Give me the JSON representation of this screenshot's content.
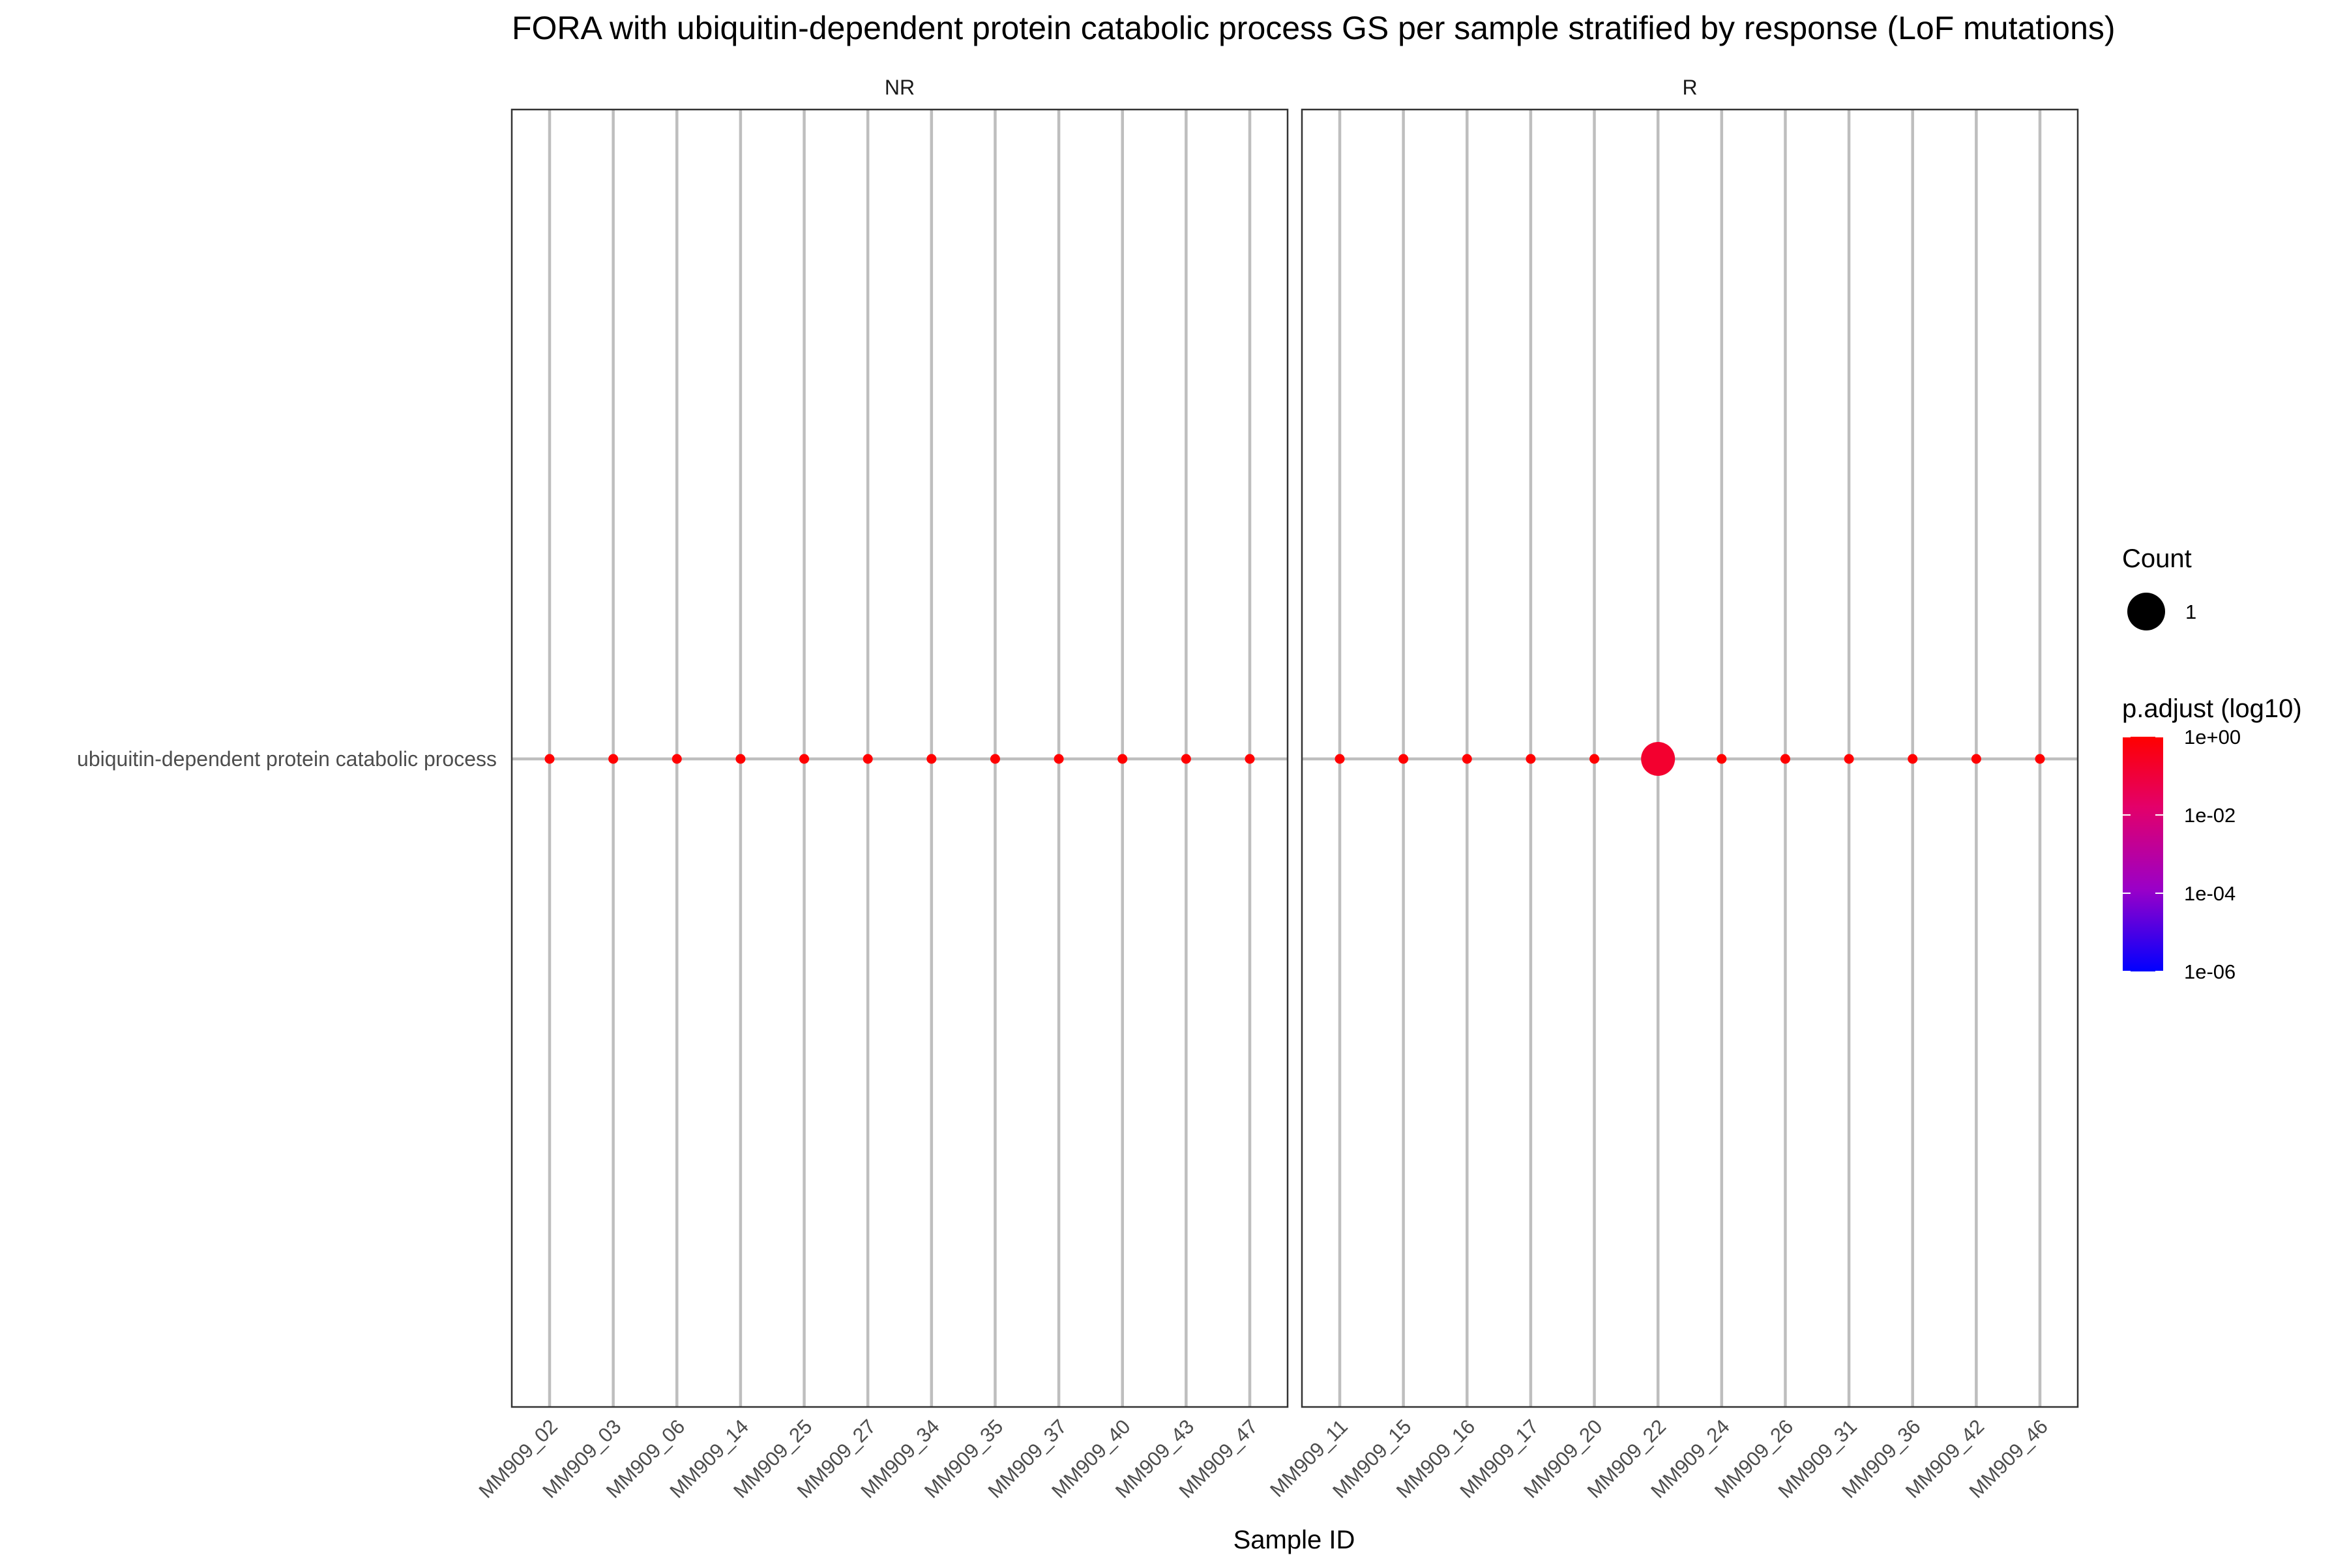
{
  "chart_data": {
    "type": "scatter",
    "title": "FORA with ubiquitin-dependent protein catabolic process GS per sample stratified by response (LoF mutations)",
    "xlabel": "Sample ID",
    "ylabel": "",
    "y_categories": [
      "ubiquitin-dependent protein catabolic process"
    ],
    "facets": [
      {
        "label": "NR",
        "samples": [
          "MM909_02",
          "MM909_03",
          "MM909_06",
          "MM909_14",
          "MM909_25",
          "MM909_27",
          "MM909_34",
          "MM909_35",
          "MM909_37",
          "MM909_40",
          "MM909_43",
          "MM909_47"
        ]
      },
      {
        "label": "R",
        "samples": [
          "MM909_11",
          "MM909_15",
          "MM909_16",
          "MM909_17",
          "MM909_20",
          "MM909_22",
          "MM909_24",
          "MM909_26",
          "MM909_31",
          "MM909_36",
          "MM909_42",
          "MM909_46"
        ]
      }
    ],
    "points": [
      {
        "facet": "NR",
        "sample": "MM909_02",
        "term": "ubiquitin-dependent protein catabolic process",
        "count": null,
        "p_adjust_log10": 0
      },
      {
        "facet": "NR",
        "sample": "MM909_03",
        "term": "ubiquitin-dependent protein catabolic process",
        "count": null,
        "p_adjust_log10": 0
      },
      {
        "facet": "NR",
        "sample": "MM909_06",
        "term": "ubiquitin-dependent protein catabolic process",
        "count": null,
        "p_adjust_log10": 0
      },
      {
        "facet": "NR",
        "sample": "MM909_14",
        "term": "ubiquitin-dependent protein catabolic process",
        "count": null,
        "p_adjust_log10": 0
      },
      {
        "facet": "NR",
        "sample": "MM909_25",
        "term": "ubiquitin-dependent protein catabolic process",
        "count": null,
        "p_adjust_log10": 0
      },
      {
        "facet": "NR",
        "sample": "MM909_27",
        "term": "ubiquitin-dependent protein catabolic process",
        "count": null,
        "p_adjust_log10": 0
      },
      {
        "facet": "NR",
        "sample": "MM909_34",
        "term": "ubiquitin-dependent protein catabolic process",
        "count": null,
        "p_adjust_log10": 0
      },
      {
        "facet": "NR",
        "sample": "MM909_35",
        "term": "ubiquitin-dependent protein catabolic process",
        "count": null,
        "p_adjust_log10": 0
      },
      {
        "facet": "NR",
        "sample": "MM909_37",
        "term": "ubiquitin-dependent protein catabolic process",
        "count": null,
        "p_adjust_log10": 0
      },
      {
        "facet": "NR",
        "sample": "MM909_40",
        "term": "ubiquitin-dependent protein catabolic process",
        "count": null,
        "p_adjust_log10": 0
      },
      {
        "facet": "NR",
        "sample": "MM909_43",
        "term": "ubiquitin-dependent protein catabolic process",
        "count": null,
        "p_adjust_log10": 0
      },
      {
        "facet": "NR",
        "sample": "MM909_47",
        "term": "ubiquitin-dependent protein catabolic process",
        "count": null,
        "p_adjust_log10": 0
      },
      {
        "facet": "R",
        "sample": "MM909_11",
        "term": "ubiquitin-dependent protein catabolic process",
        "count": null,
        "p_adjust_log10": 0
      },
      {
        "facet": "R",
        "sample": "MM909_15",
        "term": "ubiquitin-dependent protein catabolic process",
        "count": null,
        "p_adjust_log10": 0
      },
      {
        "facet": "R",
        "sample": "MM909_16",
        "term": "ubiquitin-dependent protein catabolic process",
        "count": null,
        "p_adjust_log10": 0
      },
      {
        "facet": "R",
        "sample": "MM909_17",
        "term": "ubiquitin-dependent protein catabolic process",
        "count": null,
        "p_adjust_log10": 0
      },
      {
        "facet": "R",
        "sample": "MM909_20",
        "term": "ubiquitin-dependent protein catabolic process",
        "count": null,
        "p_adjust_log10": 0
      },
      {
        "facet": "R",
        "sample": "MM909_22",
        "term": "ubiquitin-dependent protein catabolic process",
        "count": 1,
        "p_adjust_log10": -0.8
      },
      {
        "facet": "R",
        "sample": "MM909_24",
        "term": "ubiquitin-dependent protein catabolic process",
        "count": null,
        "p_adjust_log10": 0
      },
      {
        "facet": "R",
        "sample": "MM909_26",
        "term": "ubiquitin-dependent protein catabolic process",
        "count": null,
        "p_adjust_log10": 0
      },
      {
        "facet": "R",
        "sample": "MM909_31",
        "term": "ubiquitin-dependent protein catabolic process",
        "count": null,
        "p_adjust_log10": 0
      },
      {
        "facet": "R",
        "sample": "MM909_36",
        "term": "ubiquitin-dependent protein catabolic process",
        "count": null,
        "p_adjust_log10": 0
      },
      {
        "facet": "R",
        "sample": "MM909_42",
        "term": "ubiquitin-dependent protein catabolic process",
        "count": null,
        "p_adjust_log10": 0
      },
      {
        "facet": "R",
        "sample": "MM909_46",
        "term": "ubiquitin-dependent protein catabolic process",
        "count": null,
        "p_adjust_log10": 0
      }
    ],
    "size_legend": {
      "title": "Count",
      "entries": [
        {
          "label": "1",
          "count": 1
        }
      ]
    },
    "color_legend": {
      "title": "p.adjust (log10)",
      "scale": "log10",
      "range_log10": [
        -6,
        0
      ],
      "ticks": [
        {
          "label": "1e+00",
          "log10": 0
        },
        {
          "label": "1e-02",
          "log10": -2
        },
        {
          "label": "1e-04",
          "log10": -4
        },
        {
          "label": "1e-06",
          "log10": -6
        }
      ],
      "low_color": "#0000ff",
      "high_color": "#ff0000"
    },
    "grid": true,
    "legend_position": "right"
  }
}
